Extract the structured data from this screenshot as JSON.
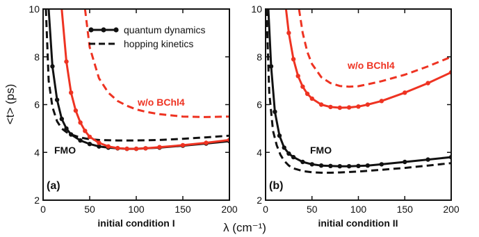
{
  "figure": {
    "ylabel": "<t> (ps)",
    "xlabel": "λ (cm⁻¹)",
    "legend": {
      "solid": "quantum dynamics",
      "dashed": "hopping kinetics",
      "placement": "top-right of panel (a)"
    }
  },
  "colors": {
    "black": "#111111",
    "red": "#ee3322"
  },
  "chart_data": [
    {
      "type": "line",
      "panel_label": "(a)",
      "xlabel": "initial condition I",
      "xlim": [
        0,
        200
      ],
      "ylim": [
        2,
        10
      ],
      "xticks": [
        0,
        50,
        100,
        150,
        200
      ],
      "yticks": [
        2,
        4,
        6,
        8,
        10
      ],
      "grid": false,
      "annotations": [
        {
          "text": "FMO",
          "color": "black"
        },
        {
          "text": "w/o BChl4",
          "color": "red"
        }
      ],
      "series": [
        {
          "group": "FMO",
          "style": "solid-markers",
          "color": "black",
          "x": [
            6,
            10,
            15,
            20,
            25,
            30,
            40,
            50,
            60,
            70,
            80,
            90,
            100,
            110,
            125,
            150,
            175,
            200
          ],
          "y": [
            10,
            7.6,
            6.2,
            5.4,
            5.0,
            4.75,
            4.5,
            4.35,
            4.25,
            4.2,
            4.17,
            4.15,
            4.15,
            4.17,
            4.2,
            4.28,
            4.37,
            4.47
          ]
        },
        {
          "group": "FMO",
          "style": "dashed",
          "color": "black",
          "x": [
            3,
            6,
            10,
            15,
            20,
            25,
            30,
            40,
            50,
            60,
            80,
            100,
            125,
            150,
            175,
            200
          ],
          "y": [
            10,
            7.0,
            5.9,
            5.3,
            5.0,
            4.85,
            4.75,
            4.62,
            4.55,
            4.52,
            4.5,
            4.5,
            4.52,
            4.57,
            4.63,
            4.7
          ]
        },
        {
          "group": "w/o BChl4",
          "style": "solid-markers",
          "color": "red",
          "x": [
            20,
            25,
            30,
            35,
            40,
            45,
            50,
            60,
            70,
            80,
            90,
            100,
            110,
            125,
            150,
            175,
            200
          ],
          "y": [
            10,
            7.8,
            6.5,
            5.75,
            5.25,
            4.9,
            4.65,
            4.4,
            4.25,
            4.18,
            4.15,
            4.15,
            4.17,
            4.22,
            4.3,
            4.4,
            4.52
          ]
        },
        {
          "group": "w/o BChl4",
          "style": "dashed",
          "color": "red",
          "x": [
            45,
            50,
            60,
            70,
            80,
            90,
            100,
            110,
            125,
            150,
            175,
            200
          ],
          "y": [
            10,
            8.4,
            7.1,
            6.5,
            6.15,
            5.95,
            5.8,
            5.7,
            5.6,
            5.5,
            5.48,
            5.5
          ]
        }
      ]
    },
    {
      "type": "line",
      "panel_label": "(b)",
      "xlabel": "initial condition II",
      "xlim": [
        0,
        200
      ],
      "ylim": [
        2,
        10
      ],
      "xticks": [
        0,
        50,
        100,
        150,
        200
      ],
      "yticks": [
        2,
        4,
        6,
        8,
        10
      ],
      "grid": false,
      "annotations": [
        {
          "text": "FMO",
          "color": "black"
        },
        {
          "text": "w/o BChl4",
          "color": "red"
        }
      ],
      "series": [
        {
          "group": "FMO",
          "style": "solid-markers",
          "color": "black",
          "x": [
            3,
            6,
            10,
            15,
            20,
            25,
            30,
            40,
            50,
            60,
            70,
            80,
            90,
            100,
            110,
            125,
            150,
            175,
            200
          ],
          "y": [
            10,
            7.6,
            5.7,
            4.7,
            4.2,
            3.95,
            3.8,
            3.6,
            3.5,
            3.45,
            3.43,
            3.42,
            3.42,
            3.43,
            3.45,
            3.5,
            3.6,
            3.7,
            3.8
          ]
        },
        {
          "group": "FMO",
          "style": "dashed",
          "color": "black",
          "x": [
            1,
            4,
            8,
            12,
            16,
            20,
            25,
            30,
            40,
            50,
            60,
            70,
            80,
            100,
            125,
            150,
            175,
            200
          ],
          "y": [
            10,
            6.5,
            4.9,
            4.3,
            3.9,
            3.65,
            3.45,
            3.33,
            3.22,
            3.17,
            3.15,
            3.15,
            3.16,
            3.2,
            3.27,
            3.35,
            3.45,
            3.55
          ]
        },
        {
          "group": "w/o BChl4",
          "style": "solid-markers",
          "color": "red",
          "x": [
            22,
            25,
            30,
            35,
            40,
            45,
            50,
            60,
            70,
            80,
            90,
            100,
            110,
            125,
            150,
            175,
            200
          ],
          "y": [
            10,
            9.0,
            7.9,
            7.2,
            6.75,
            6.45,
            6.25,
            6.0,
            5.9,
            5.87,
            5.88,
            5.92,
            6.0,
            6.15,
            6.5,
            6.9,
            7.35
          ]
        },
        {
          "group": "w/o BChl4",
          "style": "dashed",
          "color": "red",
          "x": [
            36,
            40,
            45,
            50,
            60,
            70,
            80,
            90,
            100,
            110,
            125,
            150,
            175,
            200
          ],
          "y": [
            10,
            9.0,
            8.2,
            7.7,
            7.15,
            6.9,
            6.78,
            6.75,
            6.77,
            6.85,
            6.98,
            7.25,
            7.6,
            8.0
          ]
        }
      ]
    }
  ]
}
